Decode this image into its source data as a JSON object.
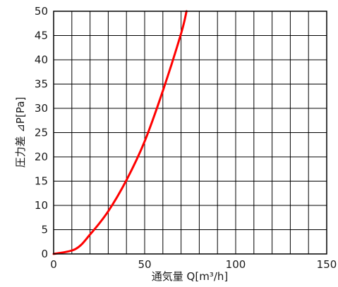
{
  "chart_data": {
    "type": "line",
    "xlabel": "通気量 Q[m³/h]",
    "ylabel": "圧力差 ⊿P[Pa]",
    "xlim": [
      0,
      150
    ],
    "ylim": [
      0,
      50
    ],
    "x_ticks": [
      "0",
      "50",
      "100",
      "150"
    ],
    "y_ticks": [
      "0",
      "5",
      "10",
      "15",
      "20",
      "25",
      "30",
      "35",
      "40",
      "45",
      "50"
    ],
    "grid": true,
    "x_grid_step": 10,
    "y_grid_step": 5,
    "series": [
      {
        "color": "#ff0000",
        "x": [
          0,
          12,
          20,
          30,
          40,
          50,
          60,
          70,
          73
        ],
        "y": [
          0,
          1,
          4,
          8.8,
          15.2,
          23.2,
          33.6,
          45.4,
          50
        ]
      }
    ]
  }
}
